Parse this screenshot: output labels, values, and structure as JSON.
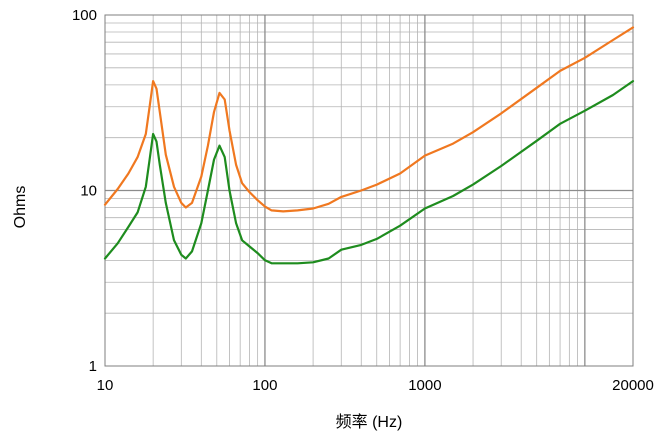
{
  "chart_data": {
    "type": "line",
    "title": "",
    "xlabel": "频率 (Hz)",
    "ylabel": "Ohms",
    "xscale": "log",
    "yscale": "log",
    "xlim": [
      10,
      20000
    ],
    "ylim": [
      1,
      100
    ],
    "grid": true,
    "legend": "none",
    "x_tick_labels": [
      "10",
      "100",
      "1000",
      "20000"
    ],
    "y_tick_labels": [
      "1",
      "10",
      "100"
    ],
    "series": [
      {
        "color": "#f07820",
        "points": [
          [
            10,
            8.3
          ],
          [
            12,
            10.2
          ],
          [
            14,
            12.5
          ],
          [
            16,
            15.5
          ],
          [
            18,
            21
          ],
          [
            19,
            30
          ],
          [
            20,
            42
          ],
          [
            21,
            38
          ],
          [
            22,
            28
          ],
          [
            24,
            16
          ],
          [
            27,
            10.5
          ],
          [
            30,
            8.5
          ],
          [
            32,
            8.0
          ],
          [
            35,
            8.5
          ],
          [
            40,
            12
          ],
          [
            44,
            18
          ],
          [
            48,
            28
          ],
          [
            52,
            36
          ],
          [
            56,
            33
          ],
          [
            60,
            22
          ],
          [
            66,
            14
          ],
          [
            72,
            11
          ],
          [
            80,
            9.8
          ],
          [
            90,
            8.8
          ],
          [
            100,
            8.1
          ],
          [
            110,
            7.7
          ],
          [
            130,
            7.6
          ],
          [
            160,
            7.7
          ],
          [
            200,
            7.9
          ],
          [
            250,
            8.4
          ],
          [
            300,
            9.2
          ],
          [
            400,
            10.0
          ],
          [
            500,
            10.8
          ],
          [
            700,
            12.5
          ],
          [
            1000,
            15.8
          ],
          [
            1500,
            18.5
          ],
          [
            2000,
            21.5
          ],
          [
            3000,
            27.5
          ],
          [
            5000,
            38.5
          ],
          [
            7000,
            48
          ],
          [
            10000,
            57
          ],
          [
            15000,
            72
          ],
          [
            20000,
            85
          ]
        ]
      },
      {
        "color": "#1e8c1e",
        "points": [
          [
            10,
            4.1
          ],
          [
            12,
            5.0
          ],
          [
            14,
            6.2
          ],
          [
            16,
            7.5
          ],
          [
            18,
            10.5
          ],
          [
            19,
            15
          ],
          [
            20,
            21
          ],
          [
            21,
            19
          ],
          [
            22,
            14
          ],
          [
            24,
            8.5
          ],
          [
            27,
            5.2
          ],
          [
            30,
            4.3
          ],
          [
            32,
            4.1
          ],
          [
            35,
            4.5
          ],
          [
            40,
            6.5
          ],
          [
            44,
            10
          ],
          [
            48,
            15
          ],
          [
            52,
            18
          ],
          [
            56,
            15.5
          ],
          [
            60,
            10
          ],
          [
            66,
            6.5
          ],
          [
            72,
            5.2
          ],
          [
            80,
            4.8
          ],
          [
            90,
            4.4
          ],
          [
            100,
            4.0
          ],
          [
            110,
            3.85
          ],
          [
            130,
            3.85
          ],
          [
            160,
            3.85
          ],
          [
            200,
            3.9
          ],
          [
            250,
            4.1
          ],
          [
            300,
            4.6
          ],
          [
            400,
            4.9
          ],
          [
            500,
            5.3
          ],
          [
            700,
            6.3
          ],
          [
            1000,
            7.9
          ],
          [
            1500,
            9.3
          ],
          [
            2000,
            10.8
          ],
          [
            3000,
            13.8
          ],
          [
            5000,
            19.2
          ],
          [
            7000,
            24
          ],
          [
            10000,
            28.5
          ],
          [
            15000,
            35
          ],
          [
            20000,
            42
          ]
        ]
      }
    ]
  }
}
